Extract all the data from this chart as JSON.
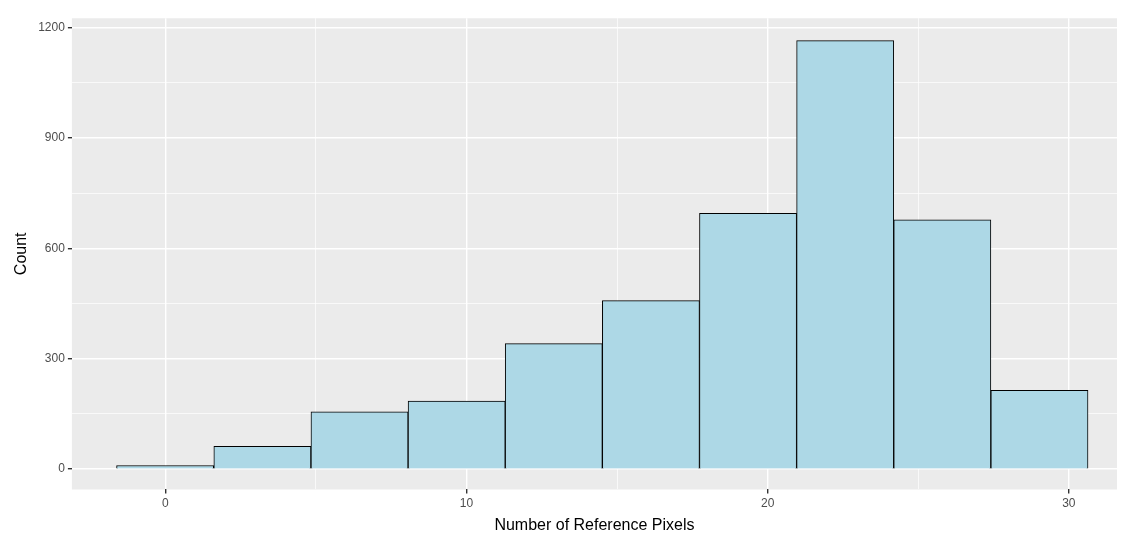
{
  "chart_data": {
    "type": "histogram",
    "xlabel": "Number of Reference Pixels",
    "ylabel": "Count",
    "bins": [
      -1.62,
      1.61,
      4.84,
      8.06,
      11.29,
      14.51,
      17.74,
      20.96,
      24.19,
      27.41,
      30.64
    ],
    "values": [
      10,
      62,
      156,
      185,
      341,
      458,
      695,
      1164,
      677,
      214
    ],
    "color": "#add8e6",
    "xlim": [
      -3.1,
      31.6
    ],
    "ylim": [
      -55,
      1225
    ],
    "xticks": [
      0,
      {
        "value": 5,
        "label": null
      },
      10,
      {
        "value": 15,
        "label": null
      },
      20,
      {
        "value": 25,
        "label": null
      },
      30
    ],
    "yticks": [
      0,
      {
        "value": 150,
        "label": null
      },
      300,
      {
        "value": 450,
        "label": null
      },
      600,
      {
        "value": 750,
        "label": null
      },
      900,
      {
        "value": 1050,
        "label": null
      },
      1200
    ],
    "grid": true
  }
}
